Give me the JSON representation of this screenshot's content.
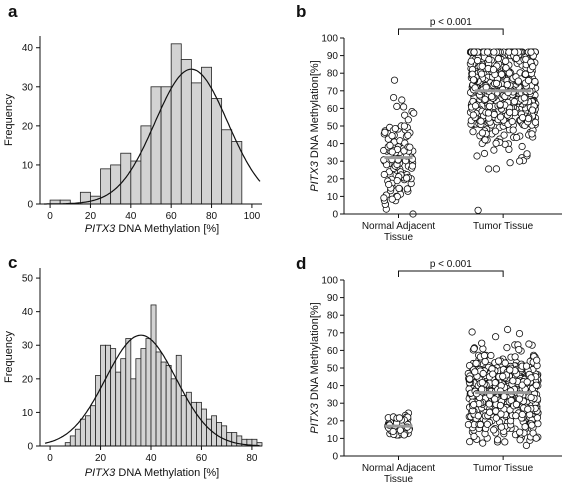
{
  "chart_data": [
    {
      "panel": "a",
      "type": "bar",
      "xlabel_italic": "PITX3",
      "xlabel_rest": " DNA Methylation [%]",
      "ylabel": "Frequency",
      "xlim": [
        -5,
        105
      ],
      "ylim": [
        0,
        43
      ],
      "xticks": [
        0,
        20,
        40,
        60,
        80,
        100
      ],
      "yticks": [
        0,
        10,
        20,
        30,
        40
      ],
      "bin_start": 0,
      "bin_width": 5,
      "values": [
        1,
        1,
        0,
        3,
        2,
        9,
        10,
        13,
        11,
        20,
        30,
        30,
        41,
        37,
        31,
        35,
        27,
        19,
        16,
        0
      ],
      "fit": {
        "mean": 70,
        "sd": 18,
        "peak": 34.5
      }
    },
    {
      "panel": "b",
      "type": "scatter",
      "ylabel_italic": "PITX3",
      "ylabel_rest": " DNA Methylation[%]",
      "categories": [
        "Normal Adjacent Tissue",
        "Tumor Tissue"
      ],
      "ylim": [
        0,
        100
      ],
      "yticks": [
        0,
        10,
        20,
        30,
        40,
        50,
        60,
        70,
        80,
        90,
        100
      ],
      "medians": [
        32,
        70
      ],
      "annotation": "p < 0.001",
      "groups": [
        {
          "n": 120,
          "center": 32,
          "sd": 14,
          "min": 0,
          "max": 76,
          "jitter": 0.14
        },
        {
          "n": 520,
          "center": 70,
          "sd": 17,
          "min": 0,
          "max": 92,
          "jitter": 0.3
        }
      ]
    },
    {
      "panel": "c",
      "type": "bar",
      "xlabel_italic": "PITX3",
      "xlabel_rest": " DNA Methylation [%]",
      "ylabel": "Frequency",
      "xlim": [
        -4,
        84
      ],
      "ylim": [
        0,
        53
      ],
      "xticks": [
        0,
        20,
        40,
        60,
        80
      ],
      "yticks": [
        0,
        10,
        20,
        30,
        40,
        50
      ],
      "bin_start": 6,
      "bin_width": 2,
      "values": [
        1,
        3,
        5,
        8,
        9,
        12,
        21,
        30,
        30,
        29,
        22,
        26,
        32,
        20,
        26,
        29,
        32,
        42,
        28,
        25,
        24,
        20,
        27,
        15,
        16,
        13,
        13,
        11,
        8,
        9,
        7,
        6,
        4,
        4,
        3,
        2,
        2,
        2,
        1
      ],
      "fit": {
        "mean": 36,
        "sd": 14,
        "peak": 33
      }
    },
    {
      "panel": "d",
      "type": "scatter",
      "ylabel_italic": "PITX3",
      "ylabel_rest": " DNA Methylation[%]",
      "categories": [
        "Normal Adjacent Tissue",
        "Tumor Tissue"
      ],
      "ylim": [
        0,
        100
      ],
      "yticks": [
        0,
        10,
        20,
        30,
        40,
        50,
        60,
        70,
        80,
        90,
        100
      ],
      "medians": [
        17,
        36
      ],
      "annotation": "p < 0.001",
      "groups": [
        {
          "n": 90,
          "center": 17,
          "sd": 3,
          "min": 12,
          "max": 25,
          "jitter": 0.1
        },
        {
          "n": 560,
          "center": 36,
          "sd": 13,
          "min": 6,
          "max": 75,
          "jitter": 0.32
        }
      ]
    }
  ]
}
